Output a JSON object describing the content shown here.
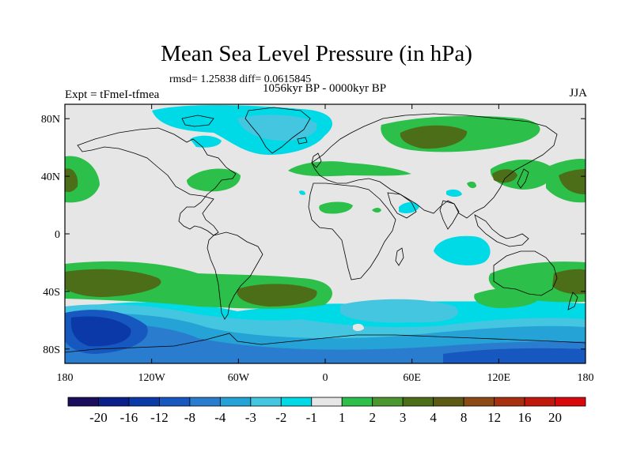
{
  "title": "Mean Sea Level Pressure (in hPa)",
  "stats_text": "rmsd= 1.25838 diff= 0.0615845",
  "experiment": "Expt = tFmeI-tfmea",
  "period": "1056kyr BP - 0000kyr BP",
  "season": "JJA",
  "map": {
    "projection": "cylindrical equidistant",
    "lon_range": [
      -180,
      180
    ],
    "lat_range": [
      -90,
      90
    ],
    "background_color": "#e6e6e6",
    "x_ticks": [
      {
        "lon": -180,
        "label": "180"
      },
      {
        "lon": -120,
        "label": "120W"
      },
      {
        "lon": -60,
        "label": "60W"
      },
      {
        "lon": 0,
        "label": "0"
      },
      {
        "lon": 60,
        "label": "60E"
      },
      {
        "lon": 120,
        "label": "120E"
      },
      {
        "lon": 180,
        "label": "180"
      }
    ],
    "y_ticks": [
      {
        "lat": 80,
        "label": "80N"
      },
      {
        "lat": 40,
        "label": "40N"
      },
      {
        "lat": 0,
        "label": "0"
      },
      {
        "lat": -40,
        "label": "40S"
      },
      {
        "lat": -80,
        "label": "80S"
      }
    ]
  },
  "colorbar": {
    "colors": [
      "#1a0d5c",
      "#0b1f8a",
      "#0c39a8",
      "#1758c0",
      "#2a7dce",
      "#25a3d6",
      "#44c6e0",
      "#00d9e6",
      "#e6e6e6",
      "#2cbf4a",
      "#4b962f",
      "#4d6e19",
      "#5c5a14",
      "#8c4a14",
      "#a6300f",
      "#c0180c",
      "#d9080a"
    ],
    "labels": [
      "-20",
      "-16",
      "-12",
      "-8",
      "-4",
      "-3",
      "-2",
      "-1",
      "1",
      "2",
      "3",
      "4",
      "8",
      "12",
      "16",
      "20"
    ]
  }
}
